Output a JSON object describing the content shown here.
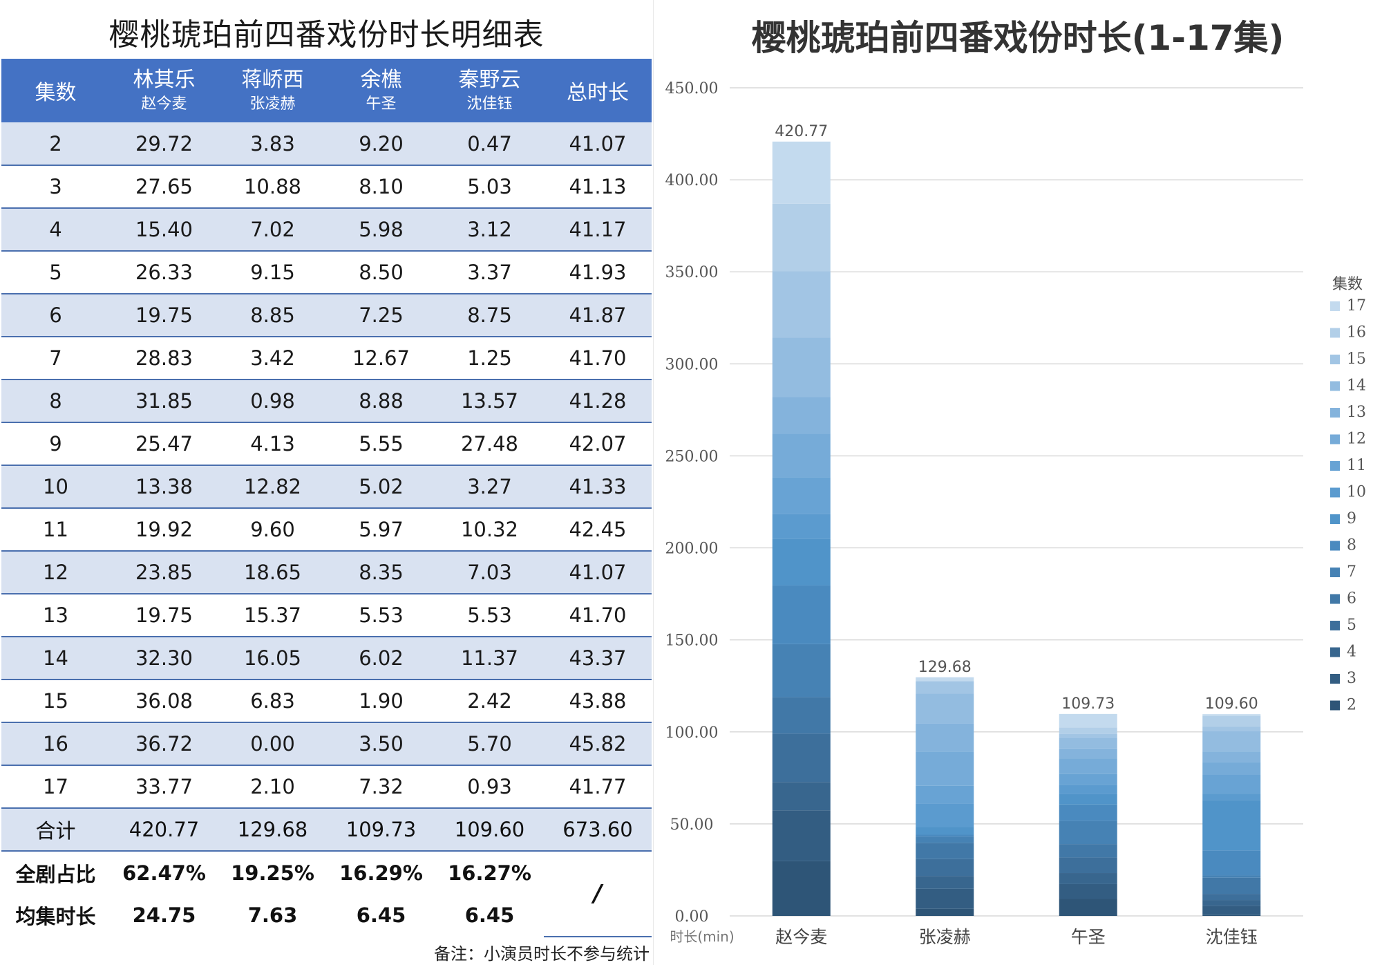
{
  "table": {
    "title": "樱桃琥珀前四番戏份时长明细表",
    "headers": [
      {
        "name": "集数",
        "sub": ""
      },
      {
        "name": "林其乐",
        "sub": "赵今麦"
      },
      {
        "name": "蒋峤西",
        "sub": "张凌赫"
      },
      {
        "name": "余樵",
        "sub": "午圣"
      },
      {
        "name": "秦野云",
        "sub": "沈佳钰"
      },
      {
        "name": "总时长",
        "sub": ""
      }
    ],
    "rows": [
      [
        "2",
        "29.72",
        "3.83",
        "9.20",
        "0.47",
        "41.07"
      ],
      [
        "3",
        "27.65",
        "10.88",
        "8.10",
        "5.03",
        "41.13"
      ],
      [
        "4",
        "15.40",
        "7.02",
        "5.98",
        "3.12",
        "41.17"
      ],
      [
        "5",
        "26.33",
        "9.15",
        "8.50",
        "3.37",
        "41.93"
      ],
      [
        "6",
        "19.75",
        "8.85",
        "7.25",
        "8.75",
        "41.87"
      ],
      [
        "7",
        "28.83",
        "3.42",
        "12.67",
        "1.25",
        "41.70"
      ],
      [
        "8",
        "31.85",
        "0.98",
        "8.88",
        "13.57",
        "41.28"
      ],
      [
        "9",
        "25.47",
        "4.13",
        "5.55",
        "27.48",
        "42.07"
      ],
      [
        "10",
        "13.38",
        "12.82",
        "5.02",
        "3.27",
        "41.33"
      ],
      [
        "11",
        "19.92",
        "9.60",
        "5.97",
        "10.32",
        "42.45"
      ],
      [
        "12",
        "23.85",
        "18.65",
        "8.35",
        "7.03",
        "41.07"
      ],
      [
        "13",
        "19.75",
        "15.37",
        "5.53",
        "5.53",
        "41.70"
      ],
      [
        "14",
        "32.30",
        "16.05",
        "6.02",
        "11.37",
        "43.37"
      ],
      [
        "15",
        "36.08",
        "6.83",
        "1.90",
        "2.42",
        "43.88"
      ],
      [
        "16",
        "36.72",
        "0.00",
        "3.50",
        "5.70",
        "45.82"
      ],
      [
        "17",
        "33.77",
        "2.10",
        "7.32",
        "0.93",
        "41.77"
      ]
    ],
    "total": [
      "合计",
      "420.77",
      "129.68",
      "109.73",
      "109.60",
      "673.60"
    ],
    "pct": [
      "全剧占比",
      "62.47%",
      "19.25%",
      "16.29%",
      "16.27%"
    ],
    "avg": [
      "均集时长",
      "24.75",
      "7.63",
      "6.45",
      "6.45"
    ],
    "slash": "/",
    "note": "备注：小演员时长不参与统计"
  },
  "chart_data": {
    "type": "bar",
    "stacked": true,
    "title": "樱桃琥珀前四番戏份时长(1-17集)",
    "xlabel": "",
    "ylabel": "时长(min)",
    "ylim": [
      0,
      450
    ],
    "yticks": [
      "0.00",
      "50.00",
      "100.00",
      "150.00",
      "200.00",
      "250.00",
      "300.00",
      "350.00",
      "400.00",
      "450.00"
    ],
    "grid": true,
    "legend_title": "集数",
    "legend_position": "right",
    "categories": [
      "赵今麦",
      "张凌赫",
      "午圣",
      "沈佳钰"
    ],
    "totals_labels": [
      "420.77",
      "129.68",
      "109.73",
      "109.60"
    ],
    "series": [
      {
        "name": "2",
        "values": [
          29.72,
          3.83,
          9.2,
          0.47
        ],
        "color": "#2e5577"
      },
      {
        "name": "3",
        "values": [
          27.65,
          10.88,
          8.1,
          5.03
        ],
        "color": "#335d82"
      },
      {
        "name": "4",
        "values": [
          15.4,
          7.02,
          5.98,
          3.12
        ],
        "color": "#38668e"
      },
      {
        "name": "5",
        "values": [
          26.33,
          9.15,
          8.5,
          3.37
        ],
        "color": "#3d6f9b"
      },
      {
        "name": "6",
        "values": [
          19.75,
          8.85,
          7.25,
          8.75
        ],
        "color": "#4178a7"
      },
      {
        "name": "7",
        "values": [
          28.83,
          3.42,
          12.67,
          1.25
        ],
        "color": "#4682b4"
      },
      {
        "name": "8",
        "values": [
          31.85,
          0.98,
          8.88,
          13.57
        ],
        "color": "#4a8abf"
      },
      {
        "name": "9",
        "values": [
          25.47,
          4.13,
          5.55,
          27.48
        ],
        "color": "#5094c9"
      },
      {
        "name": "10",
        "values": [
          13.38,
          12.82,
          5.02,
          3.27
        ],
        "color": "#5b9bcf"
      },
      {
        "name": "11",
        "values": [
          19.92,
          9.6,
          5.97,
          10.32
        ],
        "color": "#68a3d4"
      },
      {
        "name": "12",
        "values": [
          23.85,
          18.65,
          8.35,
          7.03
        ],
        "color": "#76abd8"
      },
      {
        "name": "13",
        "values": [
          19.75,
          15.37,
          5.53,
          5.53
        ],
        "color": "#84b3dc"
      },
      {
        "name": "14",
        "values": [
          32.3,
          16.05,
          6.02,
          11.37
        ],
        "color": "#93bce0"
      },
      {
        "name": "15",
        "values": [
          36.08,
          6.83,
          1.9,
          2.42
        ],
        "color": "#a2c5e4"
      },
      {
        "name": "16",
        "values": [
          36.72,
          0.0,
          3.5,
          5.7
        ],
        "color": "#b2cfe8"
      },
      {
        "name": "17",
        "values": [
          33.77,
          2.1,
          7.32,
          0.93
        ],
        "color": "#c3daee"
      }
    ]
  }
}
